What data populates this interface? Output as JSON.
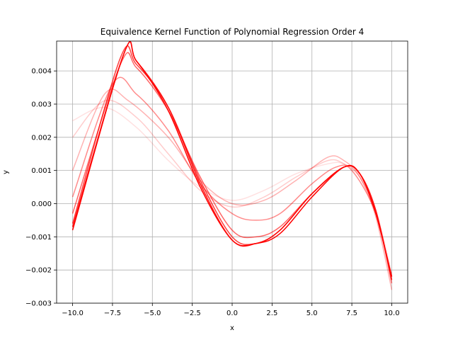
{
  "chart_data": {
    "type": "line",
    "title": "Equivalence Kernel Function of Polynomial Regression Order 4",
    "xlabel": "x",
    "ylabel": "y",
    "xlim": [
      -11.0,
      11.0
    ],
    "ylim": [
      -0.003,
      0.0049
    ],
    "xticks": [
      -10.0,
      -7.5,
      -5.0,
      -2.5,
      0.0,
      2.5,
      5.0,
      7.5,
      10.0
    ],
    "xtick_labels": [
      "−10.0",
      "−7.5",
      "−5.0",
      "−2.5",
      "0.0",
      "2.5",
      "5.0",
      "7.5",
      "10.0"
    ],
    "yticks": [
      -0.003,
      -0.002,
      -0.001,
      0.0,
      0.001,
      0.002,
      0.003,
      0.004
    ],
    "ytick_labels": [
      "−0.003",
      "−0.002",
      "−0.001",
      "0.000",
      "0.001",
      "0.002",
      "0.003",
      "0.004"
    ],
    "grid": true,
    "legend": "none",
    "line_color": "#ff0000",
    "series": [
      {
        "opacity": 0.12,
        "points": [
          [
            -10,
            0.0025
          ],
          [
            -8,
            0.0029
          ],
          [
            -6,
            0.0023
          ],
          [
            -4,
            0.0013
          ],
          [
            -2,
            0.0005
          ],
          [
            0,
            0.0001
          ],
          [
            2,
            0.0004
          ],
          [
            4,
            0.0009
          ],
          [
            6,
            0.0012
          ],
          [
            7,
            0.0012
          ],
          [
            8,
            0.0008
          ],
          [
            9,
            -0.0002
          ],
          [
            10,
            -0.0021
          ]
        ]
      },
      {
        "opacity": 0.2,
        "points": [
          [
            -10,
            0.002
          ],
          [
            -8,
            0.0031
          ],
          [
            -6,
            0.0026
          ],
          [
            -4,
            0.0015
          ],
          [
            -2,
            0.0004
          ],
          [
            0,
            -0.0001
          ],
          [
            2,
            0.0002
          ],
          [
            4,
            0.0008
          ],
          [
            6,
            0.0013
          ],
          [
            7,
            0.0012
          ],
          [
            8,
            0.0008
          ],
          [
            9,
            -0.0003
          ],
          [
            10,
            -0.0024
          ]
        ]
      },
      {
        "opacity": 0.3,
        "points": [
          [
            -10,
            0.001
          ],
          [
            -8,
            0.0033
          ],
          [
            -6.5,
            0.0031
          ],
          [
            -4,
            0.002
          ],
          [
            -2,
            0.0007
          ],
          [
            0,
            0.0
          ],
          [
            2,
            0.0001
          ],
          [
            4,
            0.0007
          ],
          [
            6,
            0.0014
          ],
          [
            7,
            0.0013
          ],
          [
            8,
            0.0008
          ],
          [
            9,
            -0.0004
          ],
          [
            10,
            -0.0026
          ]
        ]
      },
      {
        "opacity": 0.45,
        "points": [
          [
            -10,
            0.0002
          ],
          [
            -7.5,
            0.0036
          ],
          [
            -6,
            0.0033
          ],
          [
            -4,
            0.0022
          ],
          [
            -2,
            0.0006
          ],
          [
            0,
            -0.0003
          ],
          [
            1.5,
            -0.0005
          ],
          [
            3,
            -0.0003
          ],
          [
            5,
            0.0006
          ],
          [
            6.5,
            0.0011
          ],
          [
            7.5,
            0.001
          ],
          [
            9,
            -0.0003
          ],
          [
            10,
            -0.0024
          ]
        ]
      },
      {
        "opacity": 0.6,
        "points": [
          [
            -10,
            -0.0003
          ],
          [
            -7,
            0.0042
          ],
          [
            -6,
            0.0041
          ],
          [
            -4,
            0.0028
          ],
          [
            -2,
            0.0008
          ],
          [
            0,
            -0.0008
          ],
          [
            1.5,
            -0.001
          ],
          [
            3,
            -0.0007
          ],
          [
            5,
            0.0003
          ],
          [
            7,
            0.0011
          ],
          [
            8,
            0.0009
          ],
          [
            9,
            -0.0002
          ],
          [
            10,
            -0.0023
          ]
        ]
      },
      {
        "opacity": 0.75,
        "points": [
          [
            -10,
            -0.0006
          ],
          [
            -7,
            0.0044
          ],
          [
            -6,
            0.0042
          ],
          [
            -4,
            0.0029
          ],
          [
            -2,
            0.0007
          ],
          [
            0,
            -0.001
          ],
          [
            1.5,
            -0.0012
          ],
          [
            3,
            -0.0008
          ],
          [
            5,
            0.0003
          ],
          [
            7,
            0.0011
          ],
          [
            8,
            0.0009
          ],
          [
            9,
            -0.0002
          ],
          [
            10,
            -0.0023
          ]
        ]
      },
      {
        "opacity": 0.9,
        "points": [
          [
            -10,
            -0.0007
          ],
          [
            -6.8,
            0.0045
          ],
          [
            -6,
            0.0043
          ],
          [
            -4,
            0.0029
          ],
          [
            -2,
            0.0006
          ],
          [
            0,
            -0.0011
          ],
          [
            1.5,
            -0.0012
          ],
          [
            3,
            -0.0008
          ],
          [
            5,
            0.0003
          ],
          [
            7,
            0.0011
          ],
          [
            8,
            0.0009
          ],
          [
            9,
            -0.0003
          ],
          [
            10,
            -0.0022
          ]
        ]
      },
      {
        "opacity": 1.0,
        "points": [
          [
            -10,
            -0.0008
          ],
          [
            -6.8,
            0.0045
          ],
          [
            -6,
            0.0043
          ],
          [
            -4,
            0.0028
          ],
          [
            -2,
            0.0005
          ],
          [
            0,
            -0.0011
          ],
          [
            1.5,
            -0.0012
          ],
          [
            3,
            -0.0009
          ],
          [
            5,
            0.0002
          ],
          [
            7,
            0.0011
          ],
          [
            8,
            0.0009
          ],
          [
            9,
            -0.0003
          ],
          [
            10,
            -0.0022
          ]
        ]
      }
    ]
  }
}
